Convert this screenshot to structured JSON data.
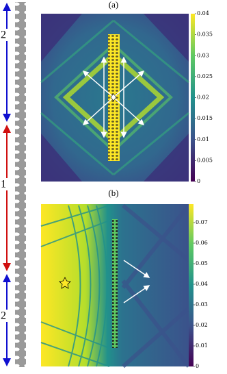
{
  "panels": [
    {
      "label": "(a)",
      "colorbar": {
        "lim": [
          0,
          0.04
        ],
        "ticks": [
          0,
          0.005,
          0.01,
          0.015,
          0.02,
          0.025,
          0.03,
          0.035,
          0.04
        ]
      }
    },
    {
      "label": "(b)",
      "colorbar": {
        "lim": [
          0,
          0.079
        ],
        "ticks": [
          0,
          0.01,
          0.02,
          0.03,
          0.04,
          0.05,
          0.06,
          0.07
        ]
      }
    }
  ],
  "segments": [
    "2",
    "1",
    "2"
  ]
}
